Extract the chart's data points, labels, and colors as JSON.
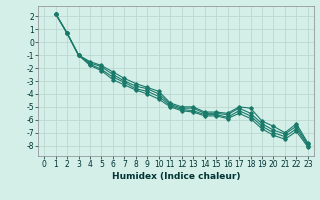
{
  "title": "",
  "xlabel": "Humidex (Indice chaleur)",
  "ylabel": "",
  "xlim": [
    -0.5,
    23.5
  ],
  "ylim": [
    -8.8,
    2.8
  ],
  "xticks": [
    0,
    1,
    2,
    3,
    4,
    5,
    6,
    7,
    8,
    9,
    10,
    11,
    12,
    13,
    14,
    15,
    16,
    17,
    18,
    19,
    20,
    21,
    22,
    23
  ],
  "yticks": [
    2,
    1,
    0,
    -1,
    -2,
    -3,
    -4,
    -5,
    -6,
    -7,
    -8
  ],
  "background_color": "#d4eee8",
  "plot_bg_color": "#d4eee8",
  "grid_color": "#b8d4cc",
  "line_color": "#1a7a6a",
  "lines": [
    [
      2.2,
      0.7,
      -1.0,
      -1.5,
      -1.8,
      -2.3,
      -2.8,
      -3.2,
      -3.5,
      -3.8,
      -4.7,
      -5.0,
      -5.0,
      -5.4,
      -5.4,
      -5.5,
      -5.0,
      -5.1,
      -6.1,
      -6.5,
      -7.0,
      -6.3,
      -7.8
    ],
    [
      2.2,
      0.7,
      -1.0,
      -1.6,
      -1.9,
      -2.5,
      -3.0,
      -3.4,
      -3.6,
      -4.0,
      -4.8,
      -5.1,
      -5.1,
      -5.5,
      -5.5,
      -5.6,
      -5.1,
      -5.5,
      -6.3,
      -6.8,
      -7.1,
      -6.5,
      -7.9
    ],
    [
      2.2,
      0.7,
      -1.0,
      -1.7,
      -2.1,
      -2.7,
      -3.1,
      -3.6,
      -3.8,
      -4.2,
      -4.9,
      -5.2,
      -5.3,
      -5.6,
      -5.6,
      -5.8,
      -5.3,
      -5.7,
      -6.5,
      -7.0,
      -7.3,
      -6.7,
      -8.0
    ],
    [
      2.2,
      0.7,
      -1.0,
      -1.8,
      -2.2,
      -2.9,
      -3.3,
      -3.7,
      -4.0,
      -4.4,
      -5.0,
      -5.3,
      -5.4,
      -5.7,
      -5.7,
      -5.9,
      -5.5,
      -5.9,
      -6.7,
      -7.2,
      -7.5,
      -6.9,
      -8.1
    ]
  ],
  "figsize": [
    3.2,
    2.0
  ],
  "dpi": 100,
  "tick_fontsize": 5.5,
  "xlabel_fontsize": 6.5,
  "xlabel_fontweight": "bold",
  "marker": "D",
  "markersize": 1.8,
  "linewidth": 0.8
}
